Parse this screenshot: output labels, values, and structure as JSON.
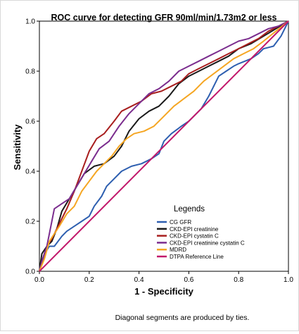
{
  "chart_data": {
    "type": "line",
    "title": "ROC curve for detecting GFR 90ml/min/1.73m2 or less",
    "xlabel": "1 - Specificity",
    "ylabel": "Sensitivity",
    "xlim": [
      0,
      1
    ],
    "ylim": [
      0,
      1
    ],
    "x_ticks": [
      "0.0",
      "0.2",
      "0.4",
      "0.6",
      "0.8",
      "1.0"
    ],
    "y_ticks": [
      "0.0",
      "0.2",
      "0.4",
      "0.6",
      "0.8",
      "1.0"
    ],
    "grid": false,
    "legend_title": "Legends",
    "legend_position": "bottom-right",
    "footnote": "Diagonal segments are produced by ties.",
    "series": [
      {
        "name": "CG GFR",
        "color": "#2e5fb0",
        "x": [
          0,
          0.01,
          0.02,
          0.04,
          0.06,
          0.09,
          0.11,
          0.14,
          0.17,
          0.2,
          0.22,
          0.25,
          0.27,
          0.3,
          0.33,
          0.37,
          0.41,
          0.45,
          0.48,
          0.5,
          0.53,
          0.57,
          0.6,
          0.62,
          0.65,
          0.68,
          0.7,
          0.72,
          0.75,
          0.78,
          0.8,
          0.85,
          0.88,
          0.9,
          0.94,
          0.97,
          1.0
        ],
        "y": [
          0,
          0.03,
          0.07,
          0.1,
          0.1,
          0.14,
          0.16,
          0.18,
          0.2,
          0.22,
          0.26,
          0.3,
          0.34,
          0.37,
          0.4,
          0.42,
          0.43,
          0.45,
          0.47,
          0.52,
          0.55,
          0.58,
          0.6,
          0.62,
          0.65,
          0.7,
          0.74,
          0.78,
          0.8,
          0.82,
          0.83,
          0.85,
          0.87,
          0.89,
          0.9,
          0.94,
          1.0
        ]
      },
      {
        "name": "CKD-EPI creatinine",
        "color": "#1a1a1a",
        "x": [
          0,
          0.01,
          0.03,
          0.05,
          0.07,
          0.09,
          0.12,
          0.15,
          0.18,
          0.22,
          0.26,
          0.3,
          0.33,
          0.36,
          0.4,
          0.44,
          0.48,
          0.52,
          0.56,
          0.6,
          0.64,
          0.68,
          0.72,
          0.76,
          0.8,
          0.85,
          0.9,
          0.95,
          1.0
        ],
        "y": [
          0,
          0.07,
          0.1,
          0.12,
          0.17,
          0.24,
          0.29,
          0.34,
          0.39,
          0.42,
          0.43,
          0.46,
          0.5,
          0.56,
          0.61,
          0.64,
          0.66,
          0.7,
          0.75,
          0.78,
          0.8,
          0.82,
          0.84,
          0.86,
          0.89,
          0.91,
          0.94,
          0.97,
          1.0
        ]
      },
      {
        "name": "CKD-EPI cystatin C",
        "color": "#a81e1e",
        "x": [
          0,
          0.01,
          0.03,
          0.05,
          0.08,
          0.11,
          0.14,
          0.17,
          0.2,
          0.23,
          0.26,
          0.3,
          0.33,
          0.37,
          0.41,
          0.45,
          0.49,
          0.53,
          0.57,
          0.6,
          0.64,
          0.68,
          0.72,
          0.76,
          0.8,
          0.84,
          0.88,
          0.92,
          0.96,
          1.0
        ],
        "y": [
          0,
          0.04,
          0.1,
          0.13,
          0.19,
          0.25,
          0.32,
          0.4,
          0.48,
          0.53,
          0.55,
          0.6,
          0.64,
          0.66,
          0.68,
          0.71,
          0.72,
          0.74,
          0.76,
          0.79,
          0.81,
          0.83,
          0.85,
          0.87,
          0.89,
          0.91,
          0.93,
          0.96,
          0.98,
          1.0
        ]
      },
      {
        "name": "CKD-EPI creatinine cystatin C",
        "color": "#7b2d8e",
        "x": [
          0,
          0.01,
          0.03,
          0.05,
          0.06,
          0.09,
          0.12,
          0.15,
          0.18,
          0.21,
          0.24,
          0.28,
          0.32,
          0.36,
          0.4,
          0.44,
          0.48,
          0.52,
          0.56,
          0.6,
          0.64,
          0.68,
          0.72,
          0.76,
          0.8,
          0.84,
          0.88,
          0.92,
          0.96,
          1.0
        ],
        "y": [
          0,
          0.04,
          0.1,
          0.2,
          0.25,
          0.27,
          0.29,
          0.34,
          0.39,
          0.44,
          0.49,
          0.52,
          0.58,
          0.63,
          0.67,
          0.71,
          0.73,
          0.76,
          0.8,
          0.82,
          0.84,
          0.86,
          0.88,
          0.9,
          0.92,
          0.93,
          0.95,
          0.97,
          0.98,
          1.0
        ]
      },
      {
        "name": "MDRD",
        "color": "#f5a623",
        "x": [
          0,
          0.02,
          0.04,
          0.06,
          0.08,
          0.11,
          0.14,
          0.17,
          0.2,
          0.23,
          0.26,
          0.29,
          0.32,
          0.35,
          0.38,
          0.42,
          0.46,
          0.5,
          0.54,
          0.58,
          0.62,
          0.66,
          0.7,
          0.74,
          0.78,
          0.82,
          0.86,
          0.9,
          0.95,
          1.0
        ],
        "y": [
          0,
          0.05,
          0.12,
          0.15,
          0.18,
          0.23,
          0.26,
          0.32,
          0.36,
          0.4,
          0.43,
          0.46,
          0.5,
          0.53,
          0.55,
          0.56,
          0.58,
          0.62,
          0.66,
          0.69,
          0.72,
          0.76,
          0.79,
          0.82,
          0.85,
          0.87,
          0.89,
          0.92,
          0.96,
          1.0
        ]
      },
      {
        "name": "DTPA Reference Line",
        "color": "#c2186b",
        "x": [
          0,
          1.0
        ],
        "y": [
          0,
          1.0
        ]
      }
    ]
  }
}
